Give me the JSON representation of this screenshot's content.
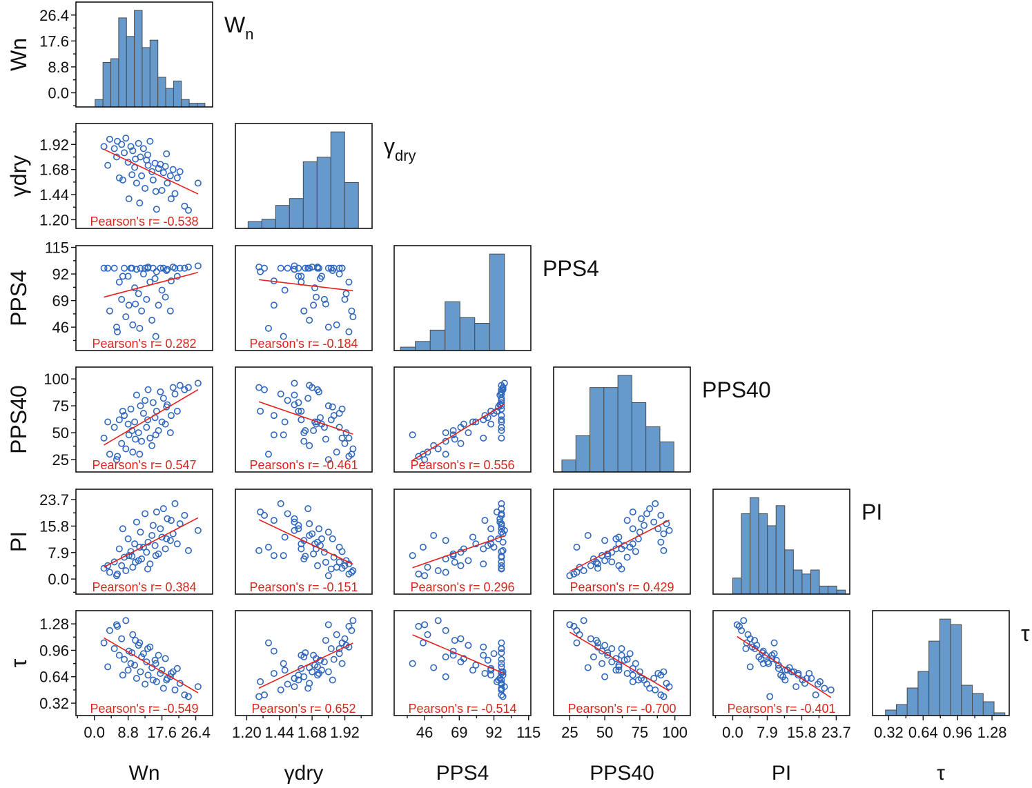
{
  "chart_data": {
    "type": "scatter-matrix",
    "grid": false,
    "colors": {
      "hist_fill": "#6699cc",
      "points": "#2f67be",
      "fit_line": "#e8201c",
      "pearson_text": "#d9261c"
    },
    "variables": [
      {
        "key": "Wn",
        "label": "Wn",
        "diag_main": "W",
        "diag_sub": "n",
        "range": [
          -4.8,
          30.8
        ],
        "ticks": [
          0,
          8.8,
          17.6,
          26.4
        ],
        "tick_labels": [
          "0.0",
          "8.8",
          "17.6",
          "26.4"
        ],
        "hist": {
          "range": [
            0.2,
            28.8
          ],
          "counts": [
            2,
            12,
            13,
            24,
            19,
            26,
            16,
            18,
            8,
            5,
            7,
            2,
            1,
            1
          ]
        }
      },
      {
        "key": "ydry",
        "label": "γdry",
        "diag_main": "γ",
        "diag_sub": "dry",
        "range": [
          1.117,
          2.12
        ],
        "ticks": [
          1.2,
          1.44,
          1.68,
          1.92
        ],
        "tick_labels": [
          "1.20",
          "1.44",
          "1.68",
          "1.92"
        ],
        "hist": {
          "range": [
            1.21,
            2.02
          ],
          "counts": [
            3,
            4,
            10,
            13,
            29,
            31,
            42,
            20
          ]
        }
      },
      {
        "key": "PPS4",
        "label": "PPS4",
        "diag_main": "PPS4",
        "diag_sub": "",
        "range": [
          25.8,
          116.5
        ],
        "ticks": [
          46,
          69,
          92,
          115
        ],
        "tick_labels": [
          "46",
          "69",
          "92",
          "115"
        ],
        "hist": {
          "range": [
            30,
            99
          ],
          "counts": [
            3,
            8,
            18,
            43,
            29,
            24,
            85
          ]
        }
      },
      {
        "key": "PPS40",
        "label": "PPS40",
        "diag_main": "PPS40",
        "diag_sub": "",
        "range": [
          13.5,
          111
        ],
        "ticks": [
          25,
          50,
          75,
          100
        ],
        "tick_labels": [
          "25",
          "50",
          "75",
          "100"
        ],
        "hist": {
          "range": [
            19.4,
            99.3
          ],
          "counts": [
            8,
            24,
            56,
            56,
            64,
            46,
            30,
            20
          ]
        }
      },
      {
        "key": "PI",
        "label": "PI",
        "diag_main": "PI",
        "diag_sub": "",
        "range": [
          -4.5,
          26.8
        ],
        "ticks": [
          0,
          7.9,
          15.8,
          23.7
        ],
        "tick_labels": [
          "0.0",
          "7.9",
          "15.8",
          "23.7"
        ],
        "hist": {
          "range": [
            0,
            25.8
          ],
          "counts": [
            4,
            20,
            24,
            20,
            17,
            22,
            11,
            6,
            5,
            6,
            2,
            2,
            1
          ]
        }
      },
      {
        "key": "tau",
        "label": "τ",
        "diag_main": "τ",
        "diag_sub": "",
        "range": [
          0.17,
          1.44
        ],
        "ticks": [
          0.32,
          0.64,
          0.96,
          1.28
        ],
        "tick_labels": [
          "0.32",
          "0.64",
          "0.96",
          "1.28"
        ],
        "hist": {
          "range": [
            0.29,
            1.4
          ],
          "counts": [
            2,
            4,
            10,
            16,
            27,
            35,
            33,
            11,
            8,
            5,
            1
          ]
        }
      }
    ],
    "pearson": [
      {
        "row": 1,
        "col": 0,
        "text": "Pearson's r= -0.538"
      },
      {
        "row": 2,
        "col": 0,
        "text": "Pearson's r= 0.282"
      },
      {
        "row": 2,
        "col": 1,
        "text": "Pearson's r= -0.184"
      },
      {
        "row": 3,
        "col": 0,
        "text": "Pearson's r= 0.547"
      },
      {
        "row": 3,
        "col": 1,
        "text": "Pearson's r= -0.461"
      },
      {
        "row": 3,
        "col": 2,
        "text": "Pearson's r= 0.556"
      },
      {
        "row": 4,
        "col": 0,
        "text": "Pearson's r= 0.384"
      },
      {
        "row": 4,
        "col": 1,
        "text": "Pearson's r= -0.151"
      },
      {
        "row": 4,
        "col": 2,
        "text": "Pearson's r= 0.296"
      },
      {
        "row": 4,
        "col": 3,
        "text": "Pearson's r= 0.429"
      },
      {
        "row": 5,
        "col": 0,
        "text": "Pearson's r= -0.549"
      },
      {
        "row": 5,
        "col": 1,
        "text": "Pearson's r= 0.652"
      },
      {
        "row": 5,
        "col": 2,
        "text": "Pearson's r= -0.514"
      },
      {
        "row": 5,
        "col": 3,
        "text": "Pearson's r= -0.700"
      },
      {
        "row": 5,
        "col": 4,
        "text": "Pearson's r= -0.401"
      }
    ],
    "observation_columns": [
      "Wn",
      "ydry",
      "PPS4",
      "PPS40",
      "PI",
      "tau"
    ],
    "observations": [
      [
        2.5,
        1.9,
        97,
        45,
        3.2,
        1.05
      ],
      [
        4.0,
        1.97,
        60,
        30,
        2.0,
        1.2
      ],
      [
        5.2,
        1.88,
        97,
        55,
        5.1,
        0.98
      ],
      [
        6.0,
        1.95,
        42,
        28,
        1.5,
        1.25
      ],
      [
        6.5,
        1.6,
        85,
        62,
        9.0,
        0.9
      ],
      [
        7.1,
        1.92,
        70,
        40,
        4.0,
        1.1
      ],
      [
        7.8,
        1.84,
        97,
        66,
        6.5,
        0.85
      ],
      [
        8.2,
        1.98,
        55,
        35,
        2.5,
        1.32
      ],
      [
        8.8,
        1.75,
        90,
        58,
        12.0,
        0.72
      ],
      [
        9.0,
        1.4,
        65,
        48,
        7.0,
        0.95
      ],
      [
        9.5,
        1.9,
        97,
        72,
        8.2,
        0.8
      ],
      [
        10.0,
        1.86,
        48,
        32,
        3.5,
        1.15
      ],
      [
        10.5,
        1.7,
        80,
        60,
        10.5,
        0.78
      ],
      [
        11.0,
        1.55,
        96,
        85,
        17.0,
        0.62
      ],
      [
        11.5,
        1.93,
        75,
        50,
        5.5,
        1.02
      ],
      [
        12.0,
        1.8,
        97,
        75,
        14.0,
        0.7
      ],
      [
        12.3,
        1.62,
        60,
        42,
        6.0,
        0.88
      ],
      [
        12.8,
        1.88,
        92,
        68,
        9.5,
        0.92
      ],
      [
        13.2,
        1.5,
        97,
        80,
        19.5,
        0.55
      ],
      [
        13.6,
        1.77,
        70,
        55,
        8.0,
        0.82
      ],
      [
        14.0,
        1.72,
        98,
        90,
        11.0,
        0.66
      ],
      [
        14.5,
        1.95,
        85,
        45,
        4.5,
        1.0
      ],
      [
        15.0,
        1.66,
        52,
        38,
        13.0,
        0.75
      ],
      [
        15.3,
        1.58,
        97,
        78,
        16.0,
        0.6
      ],
      [
        15.8,
        1.74,
        88,
        64,
        10.0,
        0.84
      ],
      [
        16.2,
        1.3,
        94,
        70,
        20.0,
        0.58
      ],
      [
        16.7,
        1.69,
        65,
        52,
        7.5,
        0.9
      ],
      [
        17.2,
        1.73,
        97,
        88,
        15.0,
        0.68
      ],
      [
        17.6,
        1.48,
        78,
        60,
        12.5,
        0.72
      ],
      [
        18.0,
        1.65,
        97,
        82,
        21.0,
        0.5
      ],
      [
        18.5,
        1.71,
        72,
        58,
        9.0,
        0.86
      ],
      [
        19.0,
        1.55,
        96,
        76,
        18.0,
        0.62
      ],
      [
        19.8,
        1.62,
        60,
        50,
        11.5,
        0.64
      ],
      [
        20.5,
        1.68,
        98,
        92,
        13.5,
        0.7
      ],
      [
        21.0,
        1.45,
        97,
        86,
        22.5,
        0.48
      ],
      [
        21.6,
        1.6,
        90,
        70,
        10.5,
        0.74
      ],
      [
        22.3,
        1.66,
        97,
        94,
        16.5,
        0.56
      ],
      [
        23.5,
        1.33,
        97,
        90,
        19.0,
        0.42
      ],
      [
        24.5,
        1.29,
        98,
        92,
        8.5,
        0.4
      ],
      [
        27.0,
        1.55,
        99,
        96,
        14.5,
        0.52
      ],
      [
        3.5,
        1.72,
        97,
        60,
        4.0,
        0.76
      ],
      [
        5.8,
        1.8,
        46,
        25,
        1.0,
        1.27
      ],
      [
        7.4,
        1.58,
        90,
        70,
        15.0,
        0.66
      ],
      [
        9.8,
        1.63,
        97,
        52,
        6.8,
        0.93
      ],
      [
        11.8,
        1.36,
        45,
        30,
        9.5,
        1.05
      ],
      [
        13.9,
        1.82,
        97,
        62,
        3.0,
        0.98
      ],
      [
        16.0,
        1.47,
        38,
        48,
        7.0,
        0.8
      ],
      [
        18.8,
        1.83,
        95,
        74,
        12.0,
        0.6
      ],
      [
        20.0,
        1.4,
        86,
        66,
        17.5,
        0.68
      ],
      [
        10.7,
        1.78,
        66,
        44,
        5.0,
        1.08
      ]
    ]
  }
}
